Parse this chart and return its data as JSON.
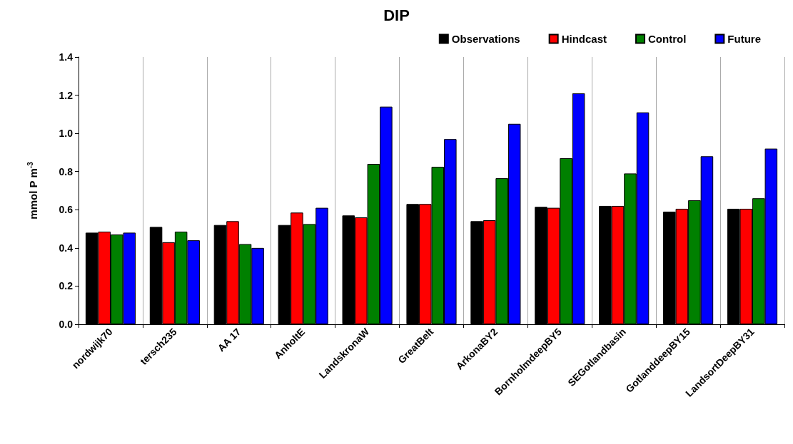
{
  "chart_data": {
    "type": "bar",
    "title": "DIP",
    "ylabel": "mmol P m$^{-3}$",
    "categories": [
      "nordwijk70",
      "tersch235",
      "AA 17",
      "AnholtE",
      "LandskronaW",
      "GreatBelt",
      "ArkonaBY2",
      "BornholmdeepBY5",
      "SEGotlandbasin",
      "GotlanddeepBY15",
      "LandsortDeepBY31"
    ],
    "series": [
      {
        "name": "Observations",
        "color": "#000000",
        "values": [
          0.48,
          0.51,
          0.52,
          0.52,
          0.57,
          0.63,
          0.54,
          0.615,
          0.62,
          0.59,
          0.605
        ]
      },
      {
        "name": "Hindcast",
        "color": "#ff0000",
        "values": [
          0.485,
          0.43,
          0.54,
          0.585,
          0.56,
          0.63,
          0.545,
          0.61,
          0.62,
          0.605,
          0.605
        ]
      },
      {
        "name": "Control",
        "color": "#008000",
        "values": [
          0.47,
          0.485,
          0.42,
          0.525,
          0.84,
          0.825,
          0.765,
          0.87,
          0.79,
          0.65,
          0.66
        ]
      },
      {
        "name": "Future",
        "color": "#0000ff",
        "values": [
          0.48,
          0.44,
          0.4,
          0.61,
          1.14,
          0.97,
          1.05,
          1.21,
          1.11,
          0.88,
          0.92
        ]
      }
    ],
    "ylim": [
      0,
      1.4
    ],
    "yticks": [
      {
        "value": 0,
        "label": "0.0"
      },
      {
        "value": 0.2,
        "label": "0.2"
      },
      {
        "value": 0.4,
        "label": "0.4"
      },
      {
        "value": 0.6,
        "label": "0.6"
      },
      {
        "value": 0.8,
        "label": "0.8"
      },
      {
        "value": 1,
        "label": "1.0"
      },
      {
        "value": 1.2,
        "label": "1.2"
      },
      {
        "value": 1.4,
        "label": "1.4"
      }
    ],
    "grid": "x",
    "legend": "top right"
  }
}
